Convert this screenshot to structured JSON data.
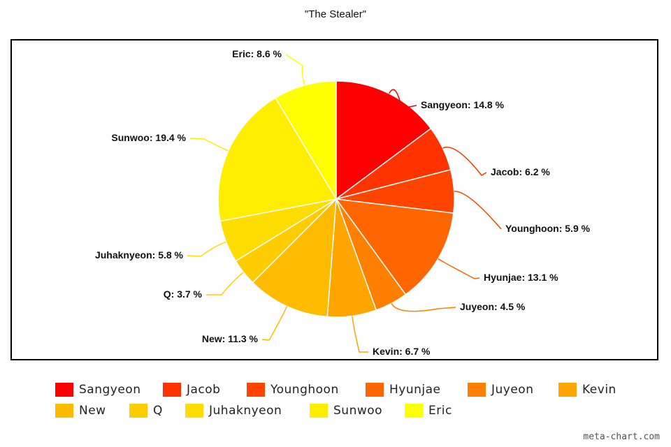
{
  "chart_data": {
    "type": "pie",
    "title": "\"The Stealer\"",
    "slices": [
      {
        "name": "Sangyeon",
        "value": 14.8,
        "label": "Sangyeon: 14.8 %",
        "color": "#ff0000"
      },
      {
        "name": "Jacob",
        "value": 6.2,
        "label": "Jacob: 6.2 %",
        "color": "#ff3300"
      },
      {
        "name": "Younghoon",
        "value": 5.9,
        "label": "Younghoon: 5.9 %",
        "color": "#ff4400"
      },
      {
        "name": "Hyunjae",
        "value": 13.1,
        "label": "Hyunjae: 13.1 %",
        "color": "#ff6600"
      },
      {
        "name": "Juyeon",
        "value": 4.5,
        "label": "Juyeon: 4.5 %",
        "color": "#ff7f00"
      },
      {
        "name": "Kevin",
        "value": 6.7,
        "label": "Kevin: 6.7 %",
        "color": "#ffa500"
      },
      {
        "name": "New",
        "value": 11.3,
        "label": "New: 11.3 %",
        "color": "#ffbb00"
      },
      {
        "name": "Q",
        "value": 3.7,
        "label": "Q: 3.7 %",
        "color": "#ffcc00"
      },
      {
        "name": "Juhaknyeon",
        "value": 5.8,
        "label": "Juhaknyeon: 5.8 %",
        "color": "#ffdd00"
      },
      {
        "name": "Sunwoo",
        "value": 19.4,
        "label": "Sunwoo: 19.4 %",
        "color": "#ffee00"
      },
      {
        "name": "Eric",
        "value": 8.6,
        "label": "Eric: 8.6 %",
        "color": "#ffff00"
      }
    ],
    "legend_position": "bottom"
  },
  "watermark": "meta-chart.com"
}
